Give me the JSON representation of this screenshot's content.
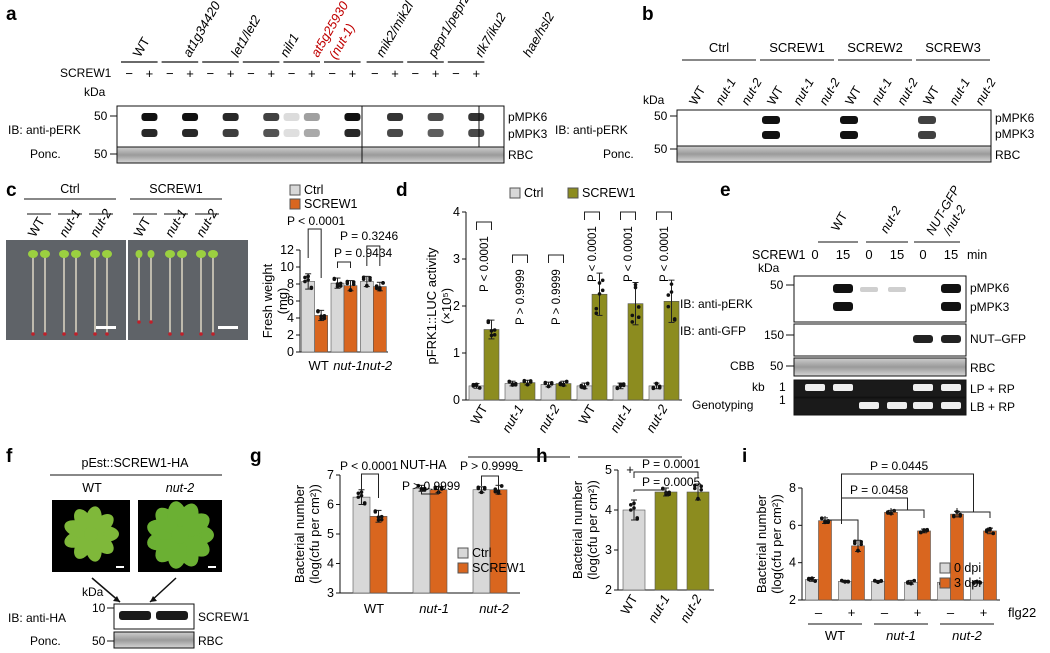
{
  "panel_letters": [
    "a",
    "b",
    "c",
    "d",
    "e",
    "f",
    "g",
    "h",
    "i"
  ],
  "panel_a": {
    "genotypes": [
      "WT",
      "at1g34420",
      "let1/let2",
      "nilr1",
      "at5g25930",
      "(nut-1)",
      "mik2/mik2l",
      "pepr1/pepr2",
      "rlk7/iku2",
      "hae/hsl2"
    ],
    "treatment": "SCREW1",
    "signs": [
      "−",
      "+"
    ],
    "kda": "kDa",
    "marker_ib": "50",
    "marker_ponc": "50",
    "ib_label": "IB: anti-pERK",
    "ponc_label": "Ponc.",
    "bands": [
      "pMPK6",
      "pMPK3"
    ],
    "rbc": "RBC",
    "highlight_color": "#c00000"
  },
  "panel_b": {
    "groups": [
      "Ctrl",
      "SCREW1",
      "SCREW2",
      "SCREW3"
    ],
    "lanes": [
      "WT",
      "nut-1",
      "nut-2"
    ],
    "kda": "kDa",
    "marker_ib": "50",
    "marker_ponc": "50",
    "ib_label": "IB: anti-pERK",
    "ponc_label": "Ponc.",
    "bands": [
      "pMPK6",
      "pMPK3"
    ],
    "rbc": "RBC"
  },
  "panel_c": {
    "photo_groups": [
      "Ctrl",
      "SCREW1"
    ],
    "photo_lanes": [
      "WT",
      "nut-1",
      "nut-2"
    ],
    "legend": [
      "Ctrl",
      "SCREW1"
    ],
    "pvals": [
      "P < 0.0001",
      "P = 0.9434",
      "P = 0.3246"
    ]
  },
  "panel_d": {
    "legend": [
      "Ctrl",
      "SCREW1"
    ],
    "pvals": [
      "P < 0.0001",
      "P > 0.9999",
      "P > 0.9999",
      "P < 0.0001",
      "P < 0.0001",
      "P < 0.0001"
    ],
    "nut_label": "NUT-HA",
    "nut_signs": [
      "–",
      "+"
    ]
  },
  "panel_e": {
    "genotypes": [
      "WT",
      "nut-2",
      "NUT-GFP",
      "/nut-2"
    ],
    "treatment": "SCREW1",
    "times": [
      "0",
      "15",
      "0",
      "15",
      "0",
      "15"
    ],
    "unit": "min",
    "kda": "kDa",
    "markers": [
      "50",
      "150",
      "50",
      "1",
      "1"
    ],
    "kb": "kb",
    "row_labels": [
      "IB: anti-pERK",
      "IB: anti-GFP",
      "CBB",
      "Genotyping"
    ],
    "bands": [
      "pMPK6",
      "pMPK3",
      "NUT–GFP",
      "RBC",
      "LP + RP",
      "LB + RP"
    ]
  },
  "panel_f": {
    "construct": "pEst::SCREW1-HA",
    "genotypes": [
      "WT",
      "nut-2"
    ],
    "kda": "kDa",
    "markers": [
      "10",
      "50"
    ],
    "ib_label": "IB: anti-HA",
    "ponc_label": "Ponc.",
    "bands": [
      "SCREW1",
      "RBC"
    ]
  },
  "panel_g": {
    "legend": [
      "Ctrl",
      "SCREW1"
    ],
    "pvals": [
      "P < 0.0001",
      "P > 0.9999",
      "P > 0.9999"
    ]
  },
  "panel_h": {
    "pvals": [
      "P = 0.0001",
      "P = 0.0005"
    ]
  },
  "panel_i": {
    "legend": [
      "0 dpi",
      "3 dpi"
    ],
    "pvals": [
      "P = 0.0445",
      "P = 0.0458"
    ],
    "flg_label": "flg22",
    "flg_signs": [
      "–",
      "+",
      "–",
      "+",
      "–",
      "+"
    ]
  },
  "colors": {
    "ctrl": "#d8d8d8",
    "screw_orange": "#d9661f",
    "screw_olive": "#8c8c1f",
    "dpi3": "#d9661f"
  },
  "chart_data": [
    {
      "type": "bar",
      "panel": "c",
      "categories": [
        "WT",
        "nut-1",
        "nut-2"
      ],
      "series": [
        {
          "name": "Ctrl",
          "values": [
            8.3,
            8.1,
            8.3
          ],
          "errors": [
            0.9,
            0.6,
            0.6
          ]
        },
        {
          "name": "SCREW1",
          "values": [
            4.3,
            7.8,
            7.7
          ],
          "errors": [
            0.6,
            0.6,
            0.5
          ]
        }
      ],
      "ylabel": "Fresh weight (mg)",
      "ylim": [
        0,
        12
      ],
      "yticks": [
        0,
        2,
        4,
        6,
        8,
        10,
        12
      ]
    },
    {
      "type": "bar",
      "panel": "d",
      "categories": [
        "WT",
        "nut-1",
        "nut-2",
        "WT",
        "nut-1",
        "nut-2"
      ],
      "series": [
        {
          "name": "Ctrl",
          "values": [
            0.3,
            0.35,
            0.33,
            0.3,
            0.3,
            0.3
          ],
          "errors": [
            0.05,
            0.05,
            0.05,
            0.06,
            0.06,
            0.06
          ]
        },
        {
          "name": "SCREW1",
          "values": [
            1.5,
            0.37,
            0.35,
            2.25,
            2.05,
            2.1
          ],
          "errors": [
            0.2,
            0.05,
            0.05,
            0.45,
            0.45,
            0.45
          ]
        }
      ],
      "ylabel": "pFRK1::LUC activity (×10⁵)",
      "ylim": [
        0,
        4
      ],
      "yticks": [
        0,
        1,
        2,
        3,
        4
      ]
    },
    {
      "type": "bar",
      "panel": "g",
      "categories": [
        "WT",
        "nut-1",
        "nut-2"
      ],
      "series": [
        {
          "name": "Ctrl",
          "values": [
            6.25,
            6.55,
            6.5
          ],
          "errors": [
            0.25,
            0.1,
            0.1
          ]
        },
        {
          "name": "SCREW1",
          "values": [
            5.6,
            6.5,
            6.5
          ],
          "errors": [
            0.2,
            0.1,
            0.15
          ]
        }
      ],
      "ylabel": "Bacterial number (log(cfu per cm²))",
      "ylim": [
        3,
        7
      ],
      "yticks": [
        3,
        4,
        5,
        6,
        7
      ]
    },
    {
      "type": "bar",
      "panel": "h",
      "categories": [
        "WT",
        "nut-1",
        "nut-2"
      ],
      "series": [
        {
          "name": "",
          "values": [
            4.0,
            4.45,
            4.45
          ],
          "errors": [
            0.25,
            0.1,
            0.2
          ]
        }
      ],
      "ylabel": "Bacterial number (log(cfu per cm²))",
      "ylim": [
        2,
        5
      ],
      "yticks": [
        2,
        3,
        4,
        5
      ]
    },
    {
      "type": "bar",
      "panel": "i",
      "categories": [
        "WT –",
        "WT +",
        "nut-1 –",
        "nut-1 +",
        "nut-2 –",
        "nut-2 +"
      ],
      "series": [
        {
          "name": "0 dpi",
          "values": [
            3.1,
            3.0,
            3.0,
            2.95,
            2.95,
            2.95
          ],
          "errors": [
            0.1,
            0.05,
            0.05,
            0.1,
            0.1,
            0.05
          ]
        },
        {
          "name": "3 dpi",
          "values": [
            6.25,
            4.9,
            6.7,
            5.7,
            6.6,
            5.7
          ],
          "errors": [
            0.15,
            0.3,
            0.1,
            0.1,
            0.15,
            0.15
          ]
        }
      ],
      "ylabel": "Bacterial number (log(cfu per cm²))",
      "ylim": [
        2,
        8
      ],
      "yticks": [
        2,
        4,
        6,
        8
      ]
    }
  ]
}
